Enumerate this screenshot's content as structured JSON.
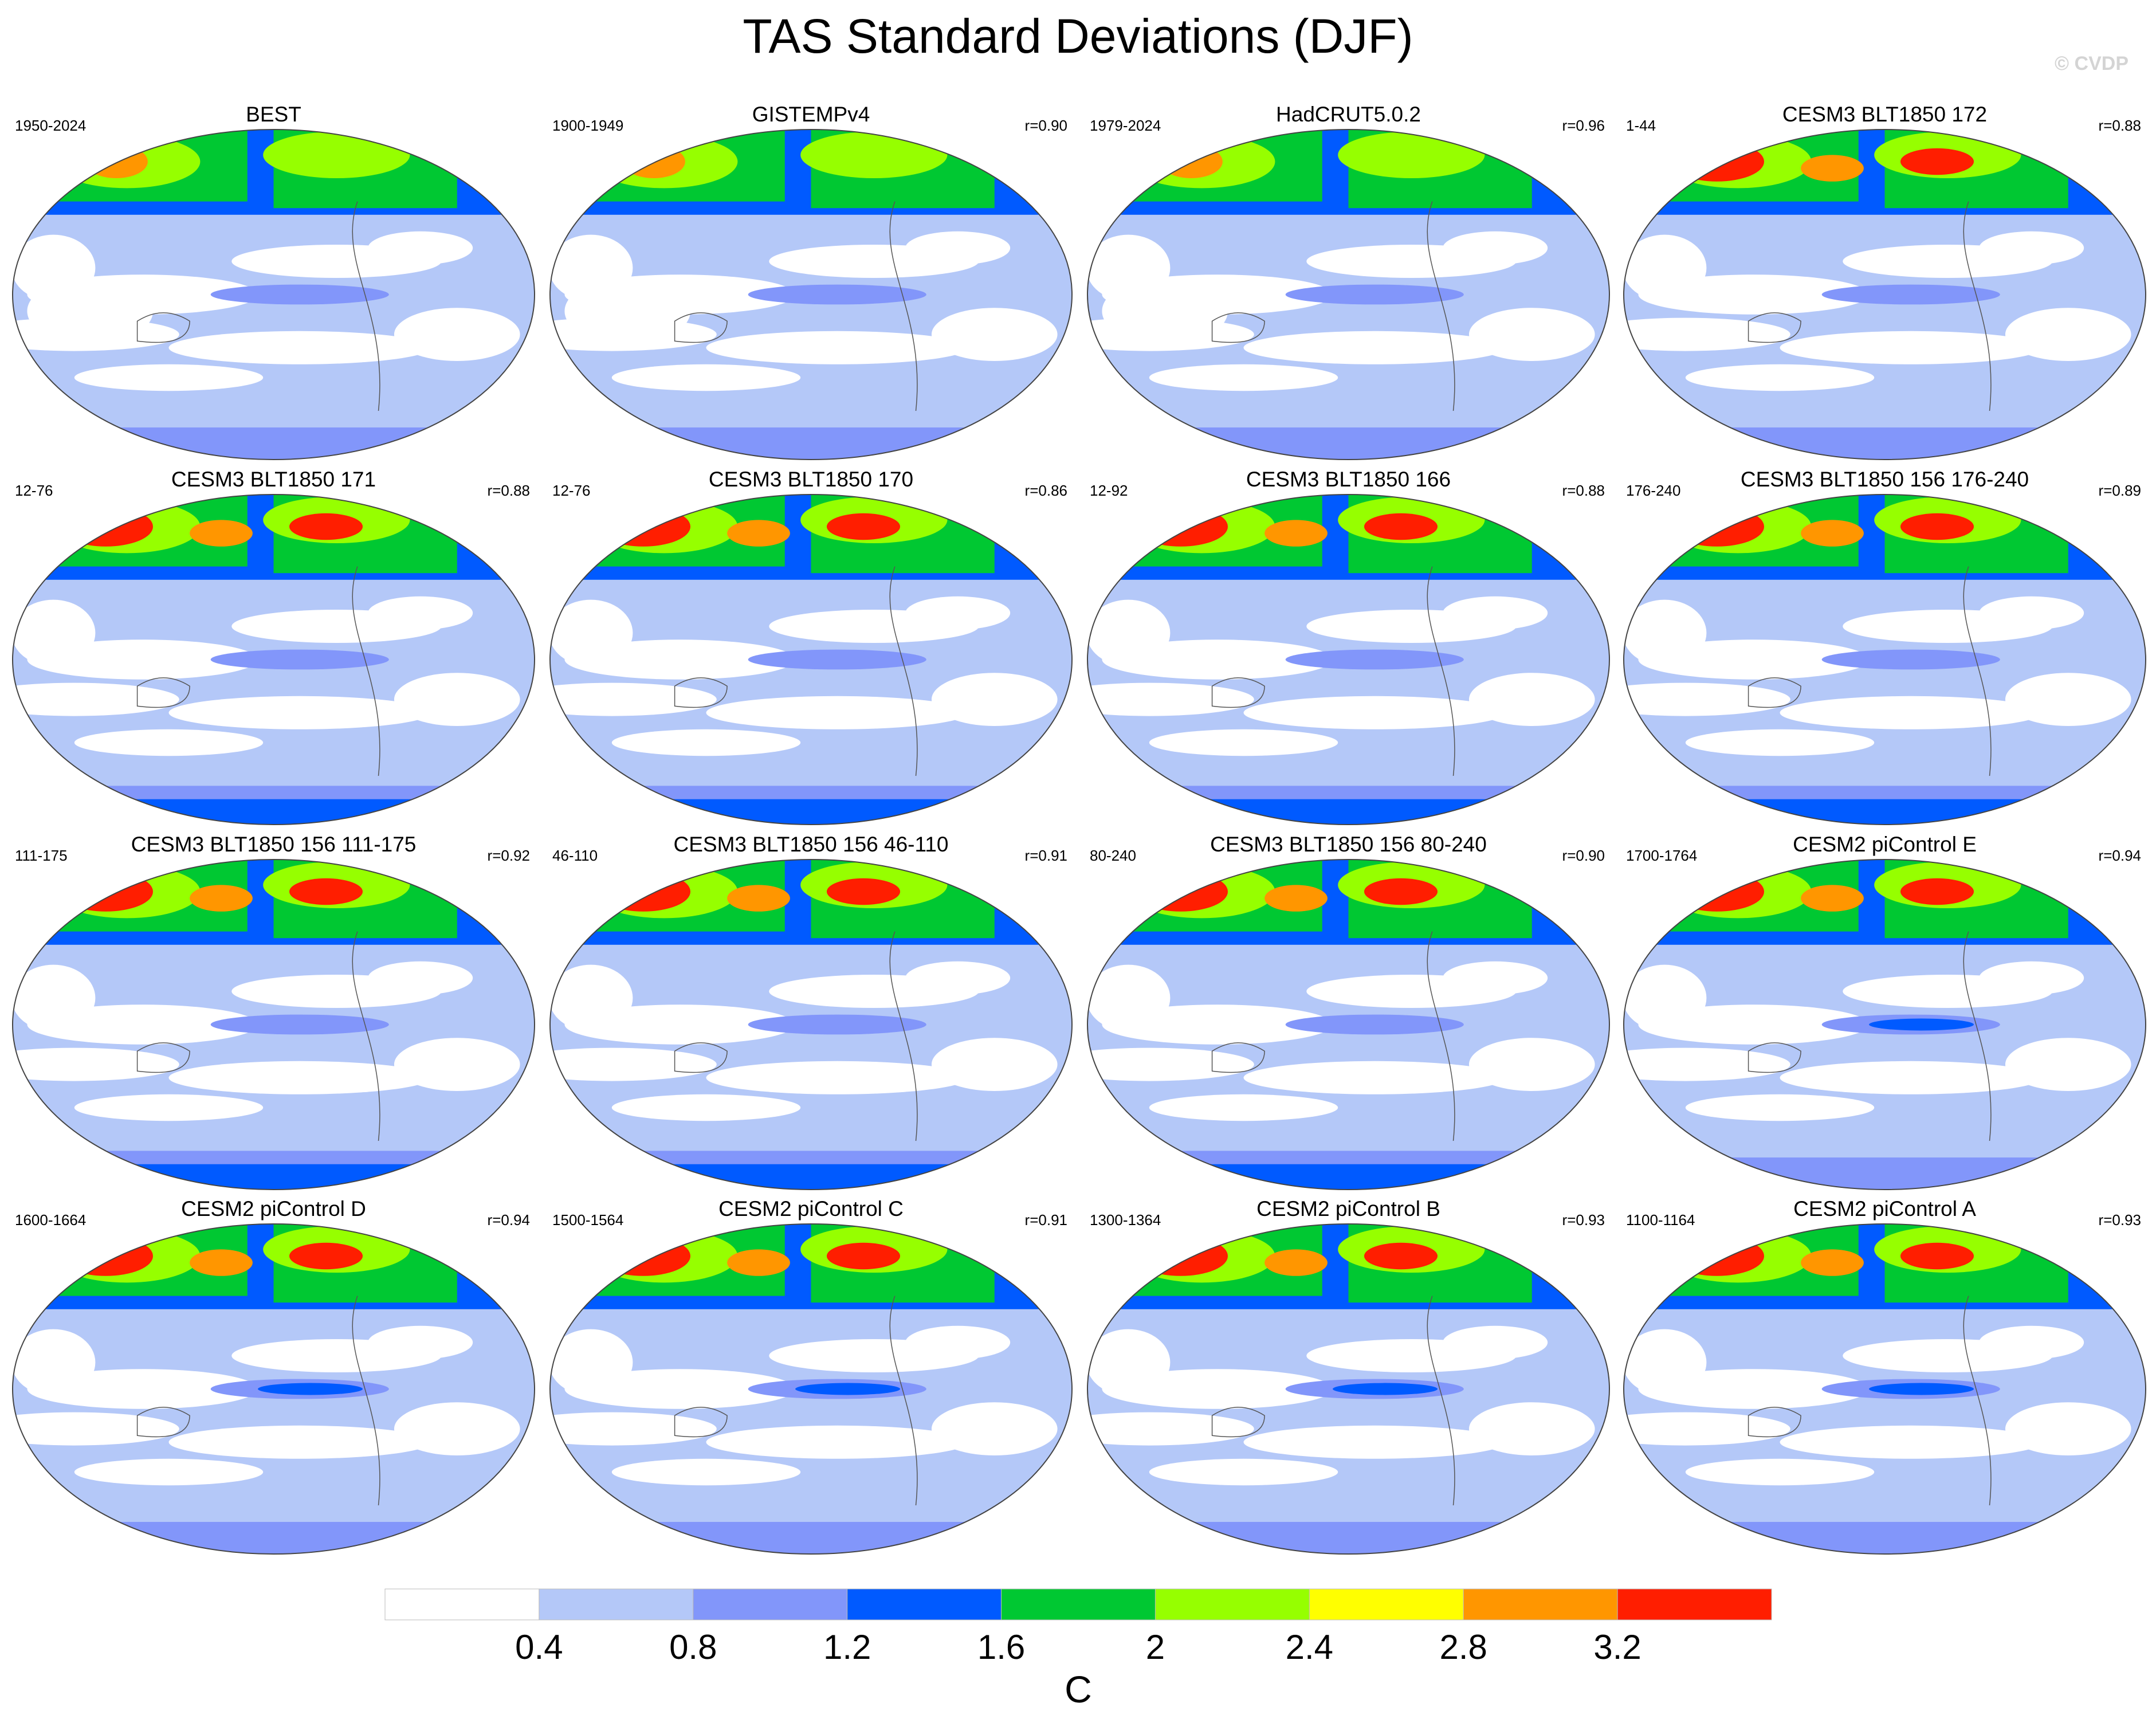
{
  "title": "TAS Standard Deviations (DJF)",
  "watermark": "© CVDP",
  "chart_data": {
    "type": "heatmap",
    "title": "TAS Standard Deviations (DJF)",
    "variable": "TAS",
    "season": "DJF",
    "projection": "global map, ellipse (Robinson-like)",
    "panels": [
      {
        "name": "BEST",
        "period": "1950-2024",
        "r": ""
      },
      {
        "name": "GISTEMPv4",
        "period": "1900-1949",
        "r": "r=0.90"
      },
      {
        "name": "HadCRUT5.0.2",
        "period": "1979-2024",
        "r": "r=0.96"
      },
      {
        "name": "CESM3 BLT1850 172",
        "period": "1-44",
        "r": "r=0.88"
      },
      {
        "name": "CESM3 BLT1850 171",
        "period": "12-76",
        "r": "r=0.88"
      },
      {
        "name": "CESM3 BLT1850 170",
        "period": "12-76",
        "r": "r=0.86"
      },
      {
        "name": "CESM3 BLT1850 166",
        "period": "12-92",
        "r": "r=0.88"
      },
      {
        "name": "CESM3 BLT1850 156 176-240",
        "period": "176-240",
        "r": "r=0.89"
      },
      {
        "name": "CESM3 BLT1850 156 111-175",
        "period": "111-175",
        "r": "r=0.92"
      },
      {
        "name": "CESM3 BLT1850 156 46-110",
        "period": "46-110",
        "r": "r=0.91"
      },
      {
        "name": "CESM3 BLT1850 156 80-240",
        "period": "80-240",
        "r": "r=0.90"
      },
      {
        "name": "CESM2 piControl E",
        "period": "1700-1764",
        "r": "r=0.94"
      },
      {
        "name": "CESM2 piControl D",
        "period": "1600-1664",
        "r": "r=0.94"
      },
      {
        "name": "CESM2 piControl C",
        "period": "1500-1564",
        "r": "r=0.91"
      },
      {
        "name": "CESM2 piControl B",
        "period": "1300-1364",
        "r": "r=0.93"
      },
      {
        "name": "CESM2 piControl A",
        "period": "1100-1164",
        "r": "r=0.93"
      }
    ],
    "colorbar": {
      "ticks": [
        "0.4",
        "0.8",
        "1.2",
        "1.6",
        "2",
        "2.4",
        "2.8",
        "3.2"
      ],
      "colors": [
        "#ffffff",
        "#b4c8f8",
        "#8296fa",
        "#005aff",
        "#00c832",
        "#96ff00",
        "#ffff00",
        "#ff9600",
        "#ff1e00"
      ],
      "unit": "C"
    }
  }
}
